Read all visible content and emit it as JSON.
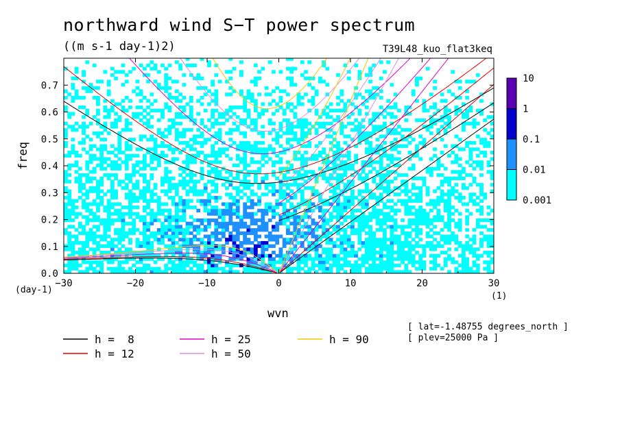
{
  "chart_data": {
    "type": "heatmap",
    "title": "northward wind S−T power spectrum",
    "subtitle": "((m s-1 day-1)2)",
    "run_label": "T39L48_kuo_flat3keq",
    "xlabel": "wvn",
    "ylabel": "freq",
    "x_unit": "(1)",
    "y_unit": "(day-1)",
    "xlim": [
      -30,
      30
    ],
    "ylim": [
      0,
      0.8
    ],
    "x_ticks": [
      -30,
      -20,
      -10,
      0,
      10,
      20,
      30
    ],
    "x_tick_labels": [
      "−30",
      "−20",
      "−10",
      "0",
      "10",
      "20",
      "30"
    ],
    "y_ticks": [
      0,
      0.1,
      0.2,
      0.3,
      0.4,
      0.5,
      0.6,
      0.7
    ],
    "y_tick_labels": [
      "0.0",
      "0.1",
      "0.2",
      "0.3",
      "0.4",
      "0.5",
      "0.6",
      "0.7"
    ],
    "colorbar": {
      "levels": [
        "0.001",
        "0.01",
        "0.1",
        "1",
        "10"
      ],
      "colors": [
        "#00ffff",
        "#1e90ff",
        "#0000cd",
        "#5a00b0"
      ]
    },
    "field_description": "Shaded power: cyan speckle fills most of the domain; blue region centered near wvn -5, freq 0.05-0.3; dark blue small patches near wvn -8..0, freq 0.05-0.15",
    "dispersion_curves": [
      {
        "h": 8,
        "label": "h =  8",
        "color": "#000000"
      },
      {
        "h": 12,
        "label": "h = 12",
        "color": "#e00000"
      },
      {
        "h": 25,
        "label": "h = 25",
        "color": "#e000c0"
      },
      {
        "h": 50,
        "label": "h = 50",
        "color": "#d890e0"
      },
      {
        "h": 90,
        "label": "h = 90",
        "color": "#f0c800"
      }
    ],
    "annotations": [
      "[ lat=-1.48755 degrees_north ]",
      "[ plev=25000 Pa ]"
    ]
  }
}
